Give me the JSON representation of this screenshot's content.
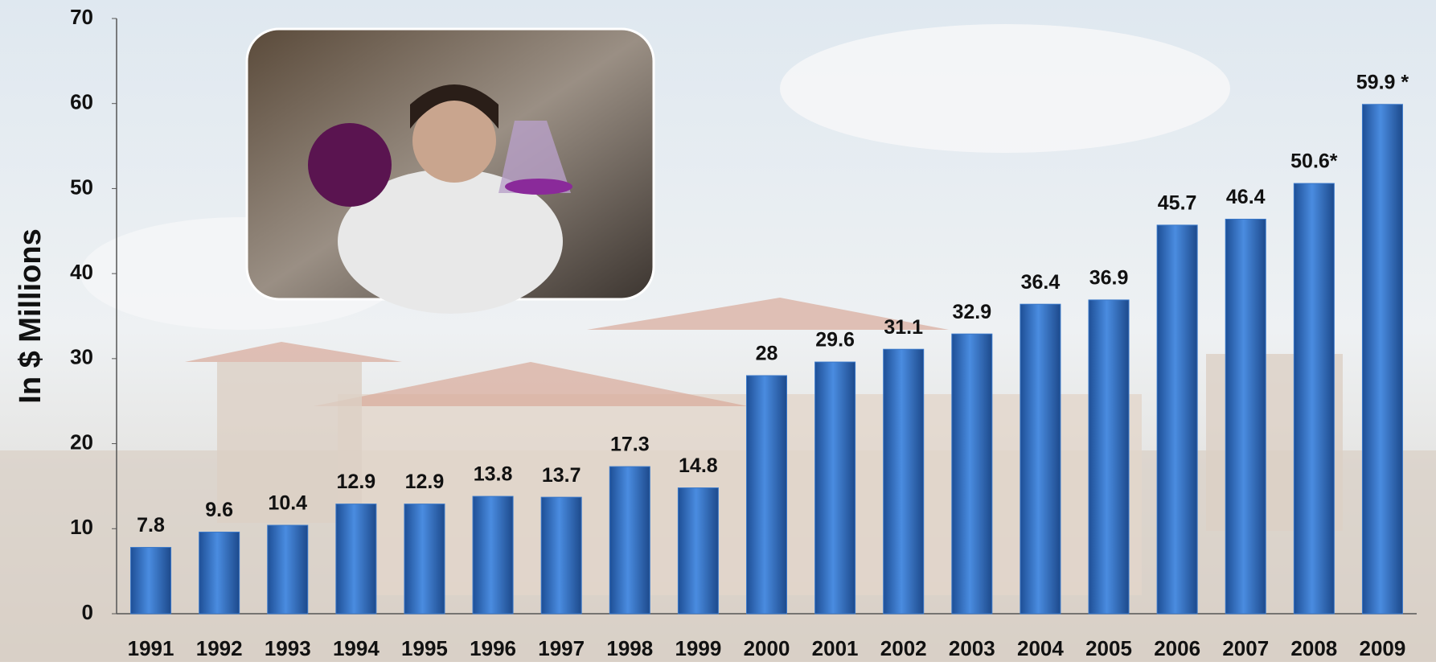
{
  "chart_data": {
    "type": "bar",
    "y_label": "In $ Millions",
    "categories": [
      "1991",
      "1992",
      "1993",
      "1994",
      "1995",
      "1996",
      "1997",
      "1998",
      "1999",
      "2000",
      "2001",
      "2002",
      "2003",
      "2004",
      "2005",
      "2006",
      "2007",
      "2008",
      "2009"
    ],
    "values": [
      7.8,
      9.6,
      10.4,
      12.9,
      12.9,
      13.8,
      13.7,
      17.3,
      14.8,
      28,
      29.6,
      31.1,
      32.9,
      36.4,
      36.9,
      45.7,
      46.4,
      50.6,
      59.9
    ],
    "value_labels": [
      "7.8",
      "9.6",
      "10.4",
      "12.9",
      "12.9",
      "13.8",
      "13.7",
      "17.3",
      "14.8",
      "28",
      "29.6",
      "31.1",
      "32.9",
      "36.4",
      "36.9",
      "45.7",
      "46.4",
      "50.6*",
      "59.9 *"
    ],
    "color": "#3a78c9",
    "ylim": [
      0,
      70
    ],
    "yticks": [
      0,
      10,
      20,
      30,
      40,
      50,
      60,
      70
    ],
    "grid": false
  }
}
